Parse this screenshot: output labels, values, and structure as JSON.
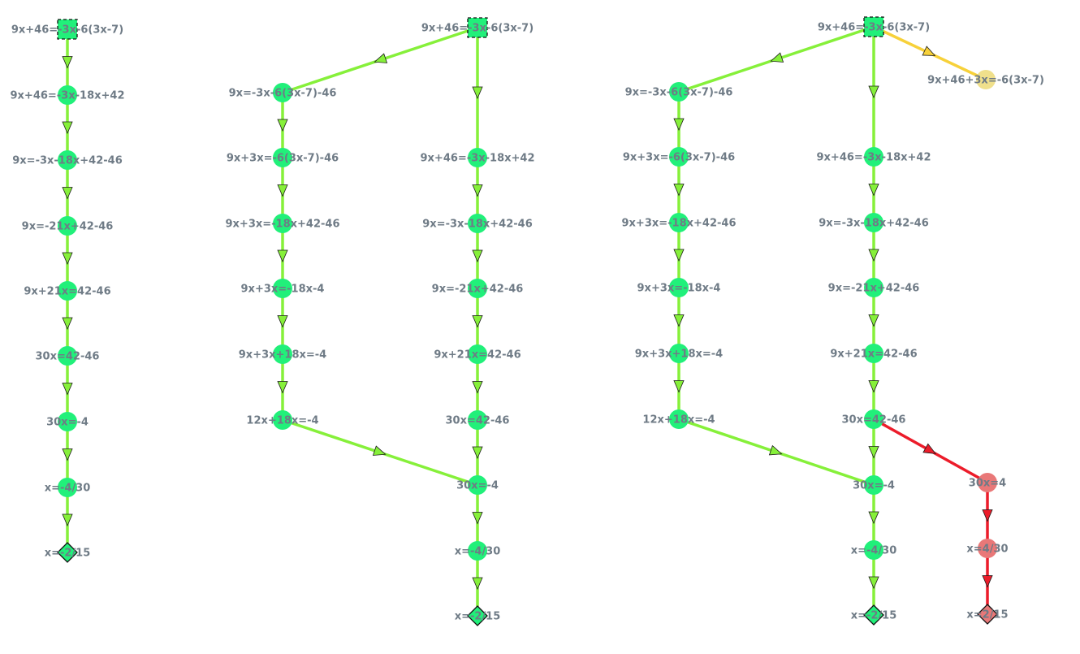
{
  "colors": {
    "correct_node": "#21f07a",
    "correct_edge": "#86f03a",
    "alt_node": "#f0e08c",
    "alt_edge": "#f7d13a",
    "wrong_node": "#e97878",
    "wrong_edge": "#ec1c2a",
    "label": "#6f7b86"
  },
  "graphs": [
    {
      "nodes": [
        {
          "id": "a1",
          "label": "9x+46=-3x-6(3x-7)",
          "status": "correct",
          "shape": "start"
        },
        {
          "id": "a2",
          "label": "9x+46=-3x-18x+42",
          "status": "correct",
          "shape": "circle"
        },
        {
          "id": "a3",
          "label": "9x=-3x-18x+42-46",
          "status": "correct",
          "shape": "circle"
        },
        {
          "id": "a4",
          "label": "9x=-21x+42-46",
          "status": "correct",
          "shape": "circle"
        },
        {
          "id": "a5",
          "label": "9x+21x=42-46",
          "status": "correct",
          "shape": "circle"
        },
        {
          "id": "a6",
          "label": "30x=42-46",
          "status": "correct",
          "shape": "circle"
        },
        {
          "id": "a7",
          "label": "30x=-4",
          "status": "correct",
          "shape": "circle"
        },
        {
          "id": "a8",
          "label": "x=-4/30",
          "status": "correct",
          "shape": "circle"
        },
        {
          "id": "a9",
          "label": "x=-2/15",
          "status": "correct",
          "shape": "end"
        }
      ],
      "edges": [
        {
          "from": "a1",
          "to": "a2",
          "status": "correct"
        },
        {
          "from": "a2",
          "to": "a3",
          "status": "correct"
        },
        {
          "from": "a3",
          "to": "a4",
          "status": "correct"
        },
        {
          "from": "a4",
          "to": "a5",
          "status": "correct"
        },
        {
          "from": "a5",
          "to": "a6",
          "status": "correct"
        },
        {
          "from": "a6",
          "to": "a7",
          "status": "correct"
        },
        {
          "from": "a7",
          "to": "a8",
          "status": "correct"
        },
        {
          "from": "a8",
          "to": "a9",
          "status": "correct"
        }
      ]
    },
    {
      "nodes": [
        {
          "id": "b0",
          "label": "9x+46=-3x-6(3x-7)",
          "status": "correct",
          "shape": "start"
        },
        {
          "id": "b1",
          "label": "9x=-3x-6(3x-7)-46",
          "status": "correct",
          "shape": "circle"
        },
        {
          "id": "b2",
          "label": "9x+3x=-6(3x-7)-46",
          "status": "correct",
          "shape": "circle"
        },
        {
          "id": "b3",
          "label": "9x+3x=-18x+42-46",
          "status": "correct",
          "shape": "circle"
        },
        {
          "id": "b4",
          "label": "9x+3x=-18x-4",
          "status": "correct",
          "shape": "circle"
        },
        {
          "id": "b5",
          "label": "9x+3x+18x=-4",
          "status": "correct",
          "shape": "circle"
        },
        {
          "id": "b6",
          "label": "12x+18x=-4",
          "status": "correct",
          "shape": "circle"
        },
        {
          "id": "b7",
          "label": "9x+46=-3x-18x+42",
          "status": "correct",
          "shape": "circle"
        },
        {
          "id": "b8",
          "label": "9x=-3x-18x+42-46",
          "status": "correct",
          "shape": "circle"
        },
        {
          "id": "b9",
          "label": "9x=-21x+42-46",
          "status": "correct",
          "shape": "circle"
        },
        {
          "id": "b10",
          "label": "9x+21x=42-46",
          "status": "correct",
          "shape": "circle"
        },
        {
          "id": "b11",
          "label": "30x=42-46",
          "status": "correct",
          "shape": "circle"
        },
        {
          "id": "b12",
          "label": "30x=-4",
          "status": "correct",
          "shape": "circle"
        },
        {
          "id": "b13",
          "label": "x=-4/30",
          "status": "correct",
          "shape": "circle"
        },
        {
          "id": "b14",
          "label": "x=-2/15",
          "status": "correct",
          "shape": "end"
        }
      ],
      "edges": [
        {
          "from": "b0",
          "to": "b1",
          "status": "correct"
        },
        {
          "from": "b1",
          "to": "b2",
          "status": "correct"
        },
        {
          "from": "b2",
          "to": "b3",
          "status": "correct"
        },
        {
          "from": "b3",
          "to": "b4",
          "status": "correct"
        },
        {
          "from": "b4",
          "to": "b5",
          "status": "correct"
        },
        {
          "from": "b5",
          "to": "b6",
          "status": "correct"
        },
        {
          "from": "b6",
          "to": "b12",
          "status": "correct"
        },
        {
          "from": "b0",
          "to": "b7",
          "status": "correct"
        },
        {
          "from": "b7",
          "to": "b8",
          "status": "correct"
        },
        {
          "from": "b8",
          "to": "b9",
          "status": "correct"
        },
        {
          "from": "b9",
          "to": "b10",
          "status": "correct"
        },
        {
          "from": "b10",
          "to": "b11",
          "status": "correct"
        },
        {
          "from": "b11",
          "to": "b12",
          "status": "correct"
        },
        {
          "from": "b12",
          "to": "b13",
          "status": "correct"
        },
        {
          "from": "b13",
          "to": "b14",
          "status": "correct"
        }
      ]
    },
    {
      "nodes": [
        {
          "id": "c0",
          "label": "9x+46=-3x-6(3x-7)",
          "status": "correct",
          "shape": "start"
        },
        {
          "id": "c1",
          "label": "9x=-3x-6(3x-7)-46",
          "status": "correct",
          "shape": "circle"
        },
        {
          "id": "c2",
          "label": "9x+3x=-6(3x-7)-46",
          "status": "correct",
          "shape": "circle"
        },
        {
          "id": "c3",
          "label": "9x+3x=-18x+42-46",
          "status": "correct",
          "shape": "circle"
        },
        {
          "id": "c4",
          "label": "9x+3x=-18x-4",
          "status": "correct",
          "shape": "circle"
        },
        {
          "id": "c5",
          "label": "9x+3x+18x=-4",
          "status": "correct",
          "shape": "circle"
        },
        {
          "id": "c6",
          "label": "12x+18x=-4",
          "status": "correct",
          "shape": "circle"
        },
        {
          "id": "c7",
          "label": "9x+46=-3x-18x+42",
          "status": "correct",
          "shape": "circle"
        },
        {
          "id": "c8",
          "label": "9x=-3x-18x+42-46",
          "status": "correct",
          "shape": "circle"
        },
        {
          "id": "c9",
          "label": "9x=-21x+42-46",
          "status": "correct",
          "shape": "circle"
        },
        {
          "id": "c10",
          "label": "9x+21x=42-46",
          "status": "correct",
          "shape": "circle"
        },
        {
          "id": "c11",
          "label": "30x=42-46",
          "status": "correct",
          "shape": "circle"
        },
        {
          "id": "c12",
          "label": "30x=-4",
          "status": "correct",
          "shape": "circle"
        },
        {
          "id": "c13",
          "label": "x=-4/30",
          "status": "correct",
          "shape": "circle"
        },
        {
          "id": "c14",
          "label": "x=-2/15",
          "status": "correct",
          "shape": "end"
        },
        {
          "id": "c15",
          "label": "9x+46+3x=-6(3x-7)",
          "status": "alt",
          "shape": "circle"
        },
        {
          "id": "c16",
          "label": "30x=4",
          "status": "wrong",
          "shape": "circle"
        },
        {
          "id": "c17",
          "label": "x=4/30",
          "status": "wrong",
          "shape": "circle"
        },
        {
          "id": "c18",
          "label": "x=2/15",
          "status": "wrong",
          "shape": "end"
        }
      ],
      "edges": [
        {
          "from": "c0",
          "to": "c1",
          "status": "correct"
        },
        {
          "from": "c1",
          "to": "c2",
          "status": "correct"
        },
        {
          "from": "c2",
          "to": "c3",
          "status": "correct"
        },
        {
          "from": "c3",
          "to": "c4",
          "status": "correct"
        },
        {
          "from": "c4",
          "to": "c5",
          "status": "correct"
        },
        {
          "from": "c5",
          "to": "c6",
          "status": "correct"
        },
        {
          "from": "c6",
          "to": "c12",
          "status": "correct"
        },
        {
          "from": "c0",
          "to": "c7",
          "status": "correct"
        },
        {
          "from": "c7",
          "to": "c8",
          "status": "correct"
        },
        {
          "from": "c8",
          "to": "c9",
          "status": "correct"
        },
        {
          "from": "c9",
          "to": "c10",
          "status": "correct"
        },
        {
          "from": "c10",
          "to": "c11",
          "status": "correct"
        },
        {
          "from": "c11",
          "to": "c12",
          "status": "correct"
        },
        {
          "from": "c12",
          "to": "c13",
          "status": "correct"
        },
        {
          "from": "c13",
          "to": "c14",
          "status": "correct"
        },
        {
          "from": "c0",
          "to": "c15",
          "status": "alt"
        },
        {
          "from": "c11",
          "to": "c16",
          "status": "wrong"
        },
        {
          "from": "c16",
          "to": "c17",
          "status": "wrong"
        },
        {
          "from": "c17",
          "to": "c18",
          "status": "wrong"
        }
      ]
    }
  ]
}
